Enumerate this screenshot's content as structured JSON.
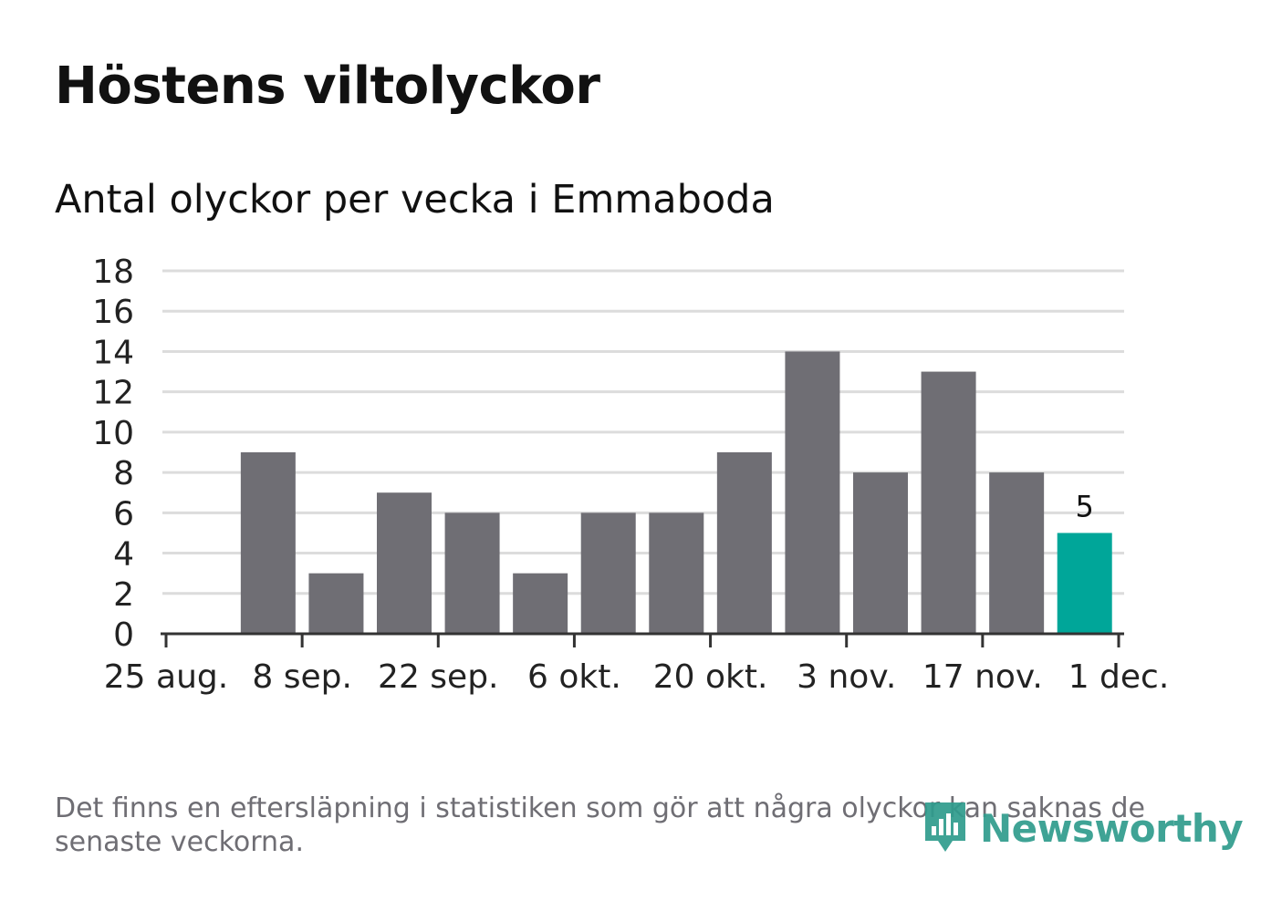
{
  "title": "Höstens viltolyckor",
  "subtitle": "Antal olyckor per vecka i Emmaboda",
  "footnote": "Det finns en eftersläpning i statistiken som gör att några olyckor kan saknas de senaste veckorna.",
  "logo": {
    "text": "Newsworthy",
    "icon": "newsworthy-logo-icon"
  },
  "colors": {
    "bar": "#6f6e74",
    "highlight": "#00a699",
    "grid": "#dcdcdc",
    "axis": "#333333",
    "text": "#111111",
    "muted": "#6f6e74",
    "brand": "#2f9c8d"
  },
  "chart_data": {
    "type": "bar",
    "xlabel": "",
    "ylabel": "",
    "ylim": [
      0,
      18
    ],
    "yticks": [
      "0",
      "2",
      "4",
      "6",
      "8",
      "10",
      "12",
      "14",
      "16",
      "18"
    ],
    "xlim": [
      "2025-08-25",
      "2025-12-01"
    ],
    "xticks": [
      {
        "date": "2025-08-25",
        "label": "25 aug."
      },
      {
        "date": "2025-09-08",
        "label": "8 sep."
      },
      {
        "date": "2025-09-22",
        "label": "22 sep."
      },
      {
        "date": "2025-10-06",
        "label": "6 okt."
      },
      {
        "date": "2025-10-20",
        "label": "20 okt."
      },
      {
        "date": "2025-11-03",
        "label": "3 nov."
      },
      {
        "date": "2025-11-17",
        "label": "17 nov."
      },
      {
        "date": "2025-12-01",
        "label": "1 dec."
      }
    ],
    "grid": true,
    "weeks": [
      "2025-09-01",
      "2025-09-08",
      "2025-09-15",
      "2025-09-22",
      "2025-09-29",
      "2025-10-06",
      "2025-10-13",
      "2025-10-20",
      "2025-10-27",
      "2025-11-03",
      "2025-11-10",
      "2025-11-17",
      "2025-11-24"
    ],
    "values": [
      9,
      3,
      7,
      6,
      3,
      6,
      6,
      9,
      14,
      8,
      13,
      8,
      5
    ],
    "highlight_index": 12,
    "annotations": [
      {
        "week": "2025-11-24",
        "text": "5"
      }
    ]
  }
}
